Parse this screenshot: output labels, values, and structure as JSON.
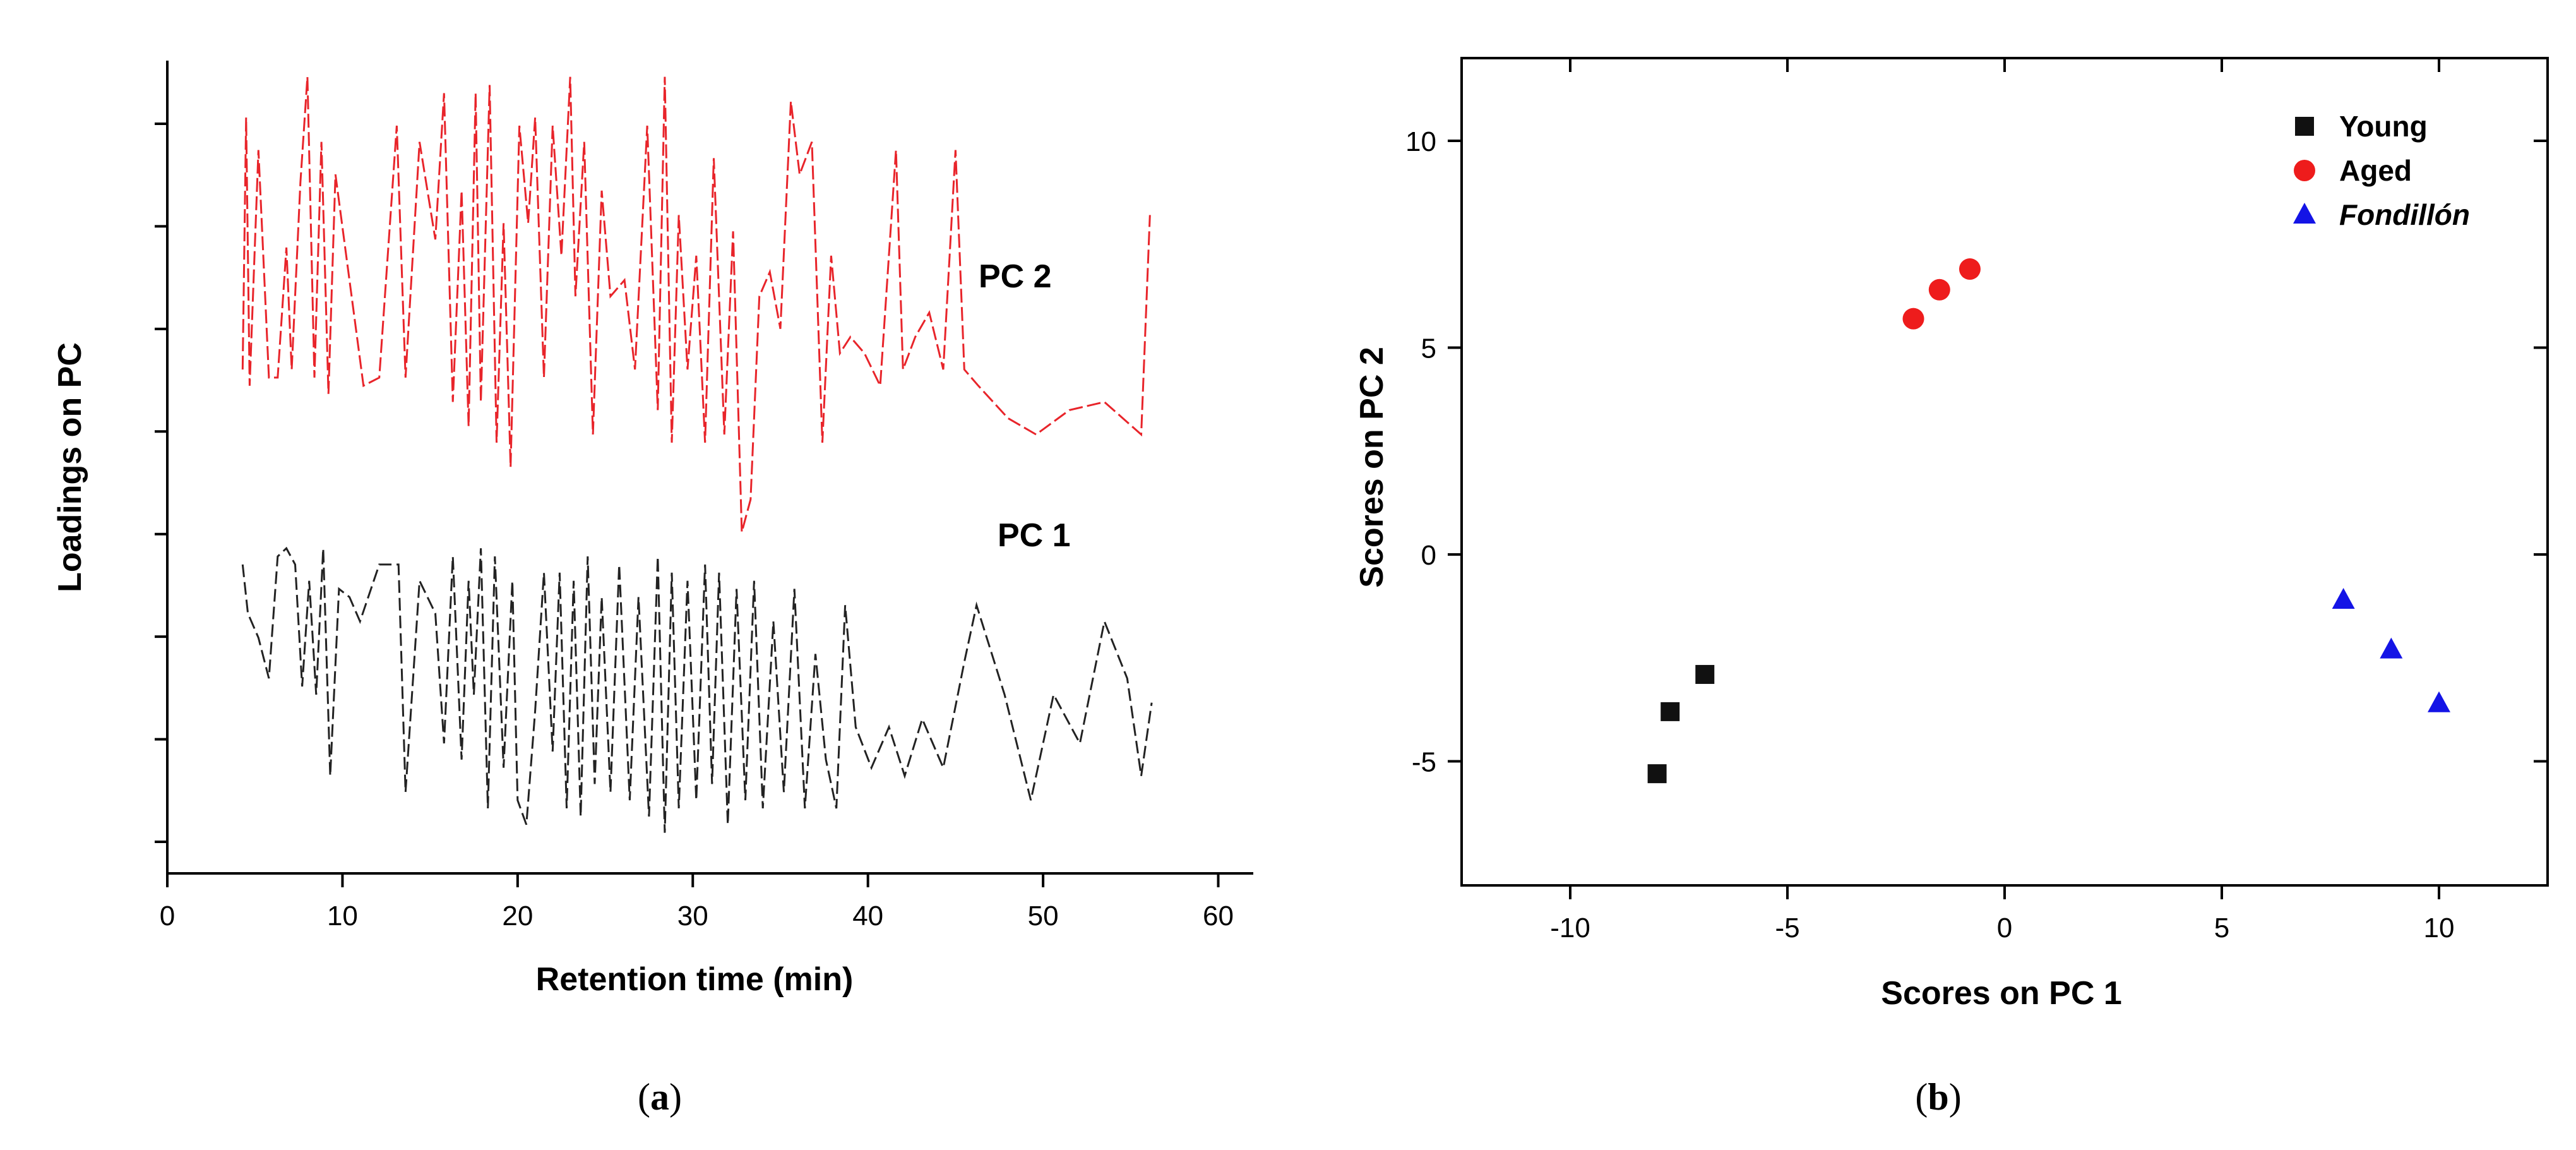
{
  "chart_data": [
    {
      "type": "line",
      "panel_caption": {
        "open": "(",
        "letter": "a",
        "close": ")"
      },
      "xlabel": "Retention time (min)",
      "ylabel": "Loadings on PC",
      "xlim": [
        0,
        62
      ],
      "x_ticks": [
        "0",
        "10",
        "20",
        "30",
        "40",
        "50",
        "60"
      ],
      "y_tick_count": 8,
      "y_tick_labels_shown": false,
      "grid": false,
      "series": [
        {
          "name": "PC 2",
          "color": "#e8242a",
          "line_style": "dashed",
          "x": [
            4.3,
            4.5,
            4.7,
            5.2,
            5.8,
            6.3,
            6.8,
            7.1,
            7.6,
            8.0,
            8.4,
            8.8,
            9.2,
            9.6,
            10.4,
            11.2,
            12.1,
            13.1,
            13.6,
            14.4,
            15.3,
            15.8,
            16.3,
            16.8,
            17.2,
            17.6,
            17.9,
            18.4,
            18.8,
            19.2,
            19.6,
            20.1,
            20.6,
            21.0,
            21.5,
            22.0,
            22.5,
            23.0,
            23.3,
            23.8,
            24.3,
            24.8,
            25.3,
            26.1,
            26.7,
            27.4,
            28.0,
            28.4,
            28.8,
            29.2,
            29.7,
            30.2,
            30.7,
            31.2,
            31.8,
            32.3,
            32.8,
            33.3,
            33.8,
            34.4,
            35.0,
            35.6,
            36.1,
            36.8,
            37.4,
            37.9,
            38.4,
            39.0,
            39.8,
            40.7,
            41.6,
            42.0,
            42.7,
            43.5,
            44.3,
            45.0,
            45.5,
            46.3,
            48.0,
            49.6,
            51.5,
            53.5,
            55.6,
            56.1
          ],
          "values": [
            0.62,
            0.93,
            0.6,
            0.89,
            0.61,
            0.61,
            0.77,
            0.62,
            0.85,
            0.98,
            0.61,
            0.9,
            0.59,
            0.86,
            0.73,
            0.6,
            0.61,
            0.92,
            0.61,
            0.9,
            0.78,
            0.96,
            0.58,
            0.84,
            0.55,
            0.96,
            0.58,
            0.97,
            0.53,
            0.8,
            0.5,
            0.92,
            0.8,
            0.93,
            0.61,
            0.92,
            0.76,
            0.98,
            0.71,
            0.9,
            0.54,
            0.84,
            0.71,
            0.73,
            0.62,
            0.92,
            0.57,
            0.98,
            0.53,
            0.81,
            0.62,
            0.76,
            0.53,
            0.88,
            0.54,
            0.79,
            0.42,
            0.46,
            0.71,
            0.74,
            0.67,
            0.95,
            0.86,
            0.9,
            0.53,
            0.76,
            0.64,
            0.66,
            0.64,
            0.6,
            0.89,
            0.62,
            0.66,
            0.69,
            0.62,
            0.89,
            0.62,
            0.6,
            0.56,
            0.54,
            0.57,
            0.58,
            0.54,
            0.81
          ]
        },
        {
          "name": "PC 1",
          "color": "#222222",
          "line_style": "dashed",
          "x": [
            4.3,
            4.6,
            5.2,
            5.8,
            6.3,
            6.8,
            7.3,
            7.7,
            8.1,
            8.5,
            8.9,
            9.3,
            9.8,
            10.4,
            11.0,
            12.1,
            13.2,
            13.6,
            14.4,
            15.3,
            15.8,
            16.3,
            16.8,
            17.2,
            17.5,
            17.9,
            18.3,
            18.7,
            19.2,
            19.7,
            20.0,
            20.5,
            21.0,
            21.5,
            22.0,
            22.4,
            22.8,
            23.2,
            23.6,
            24.0,
            24.4,
            24.8,
            25.3,
            25.8,
            26.4,
            26.9,
            27.5,
            28.0,
            28.4,
            28.8,
            29.2,
            29.7,
            30.2,
            30.7,
            31.1,
            31.5,
            32.0,
            32.5,
            33.0,
            33.5,
            34.0,
            34.6,
            35.2,
            35.8,
            36.4,
            37.0,
            37.6,
            38.2,
            38.7,
            39.3,
            40.2,
            41.2,
            42.1,
            43.1,
            44.3,
            45.5,
            46.2,
            47.8,
            49.3,
            50.6,
            52.1,
            53.5,
            54.8,
            55.6,
            56.2
          ],
          "values": [
            0.38,
            0.32,
            0.29,
            0.24,
            0.39,
            0.4,
            0.38,
            0.23,
            0.36,
            0.22,
            0.4,
            0.12,
            0.35,
            0.34,
            0.31,
            0.38,
            0.38,
            0.1,
            0.36,
            0.32,
            0.16,
            0.39,
            0.14,
            0.36,
            0.22,
            0.4,
            0.08,
            0.39,
            0.13,
            0.36,
            0.09,
            0.06,
            0.2,
            0.37,
            0.15,
            0.37,
            0.08,
            0.36,
            0.07,
            0.39,
            0.11,
            0.34,
            0.1,
            0.38,
            0.09,
            0.34,
            0.07,
            0.39,
            0.05,
            0.37,
            0.08,
            0.36,
            0.09,
            0.38,
            0.11,
            0.37,
            0.06,
            0.35,
            0.09,
            0.36,
            0.08,
            0.31,
            0.1,
            0.35,
            0.08,
            0.27,
            0.14,
            0.08,
            0.33,
            0.18,
            0.13,
            0.18,
            0.12,
            0.19,
            0.13,
            0.26,
            0.33,
            0.22,
            0.09,
            0.22,
            0.16,
            0.31,
            0.24,
            0.12,
            0.21
          ]
        }
      ]
    },
    {
      "type": "scatter",
      "panel_caption": {
        "open": "(",
        "letter": "b",
        "close": ")"
      },
      "xlabel": "Scores on PC 1",
      "ylabel": "Scores on PC 2",
      "xlim": [
        -12.5,
        12.5
      ],
      "ylim": [
        -8,
        12
      ],
      "x_ticks": [
        -10,
        -5,
        0,
        5,
        10
      ],
      "x_tick_labels": [
        "-10",
        "-5",
        "0",
        "5",
        "10"
      ],
      "y_ticks": [
        -5,
        0,
        5,
        10
      ],
      "y_tick_labels": [
        "-5",
        "0",
        "5",
        "10"
      ],
      "grid": false,
      "legend_position": "top-right",
      "series": [
        {
          "name": "Young",
          "marker": "square",
          "color": "#111111",
          "italic": false,
          "x": [
            -8.0,
            -7.7,
            -6.9
          ],
          "y": [
            -5.3,
            -3.8,
            -2.9
          ]
        },
        {
          "name": "Aged",
          "marker": "circle",
          "color": "#ee1c1c",
          "italic": false,
          "x": [
            -2.1,
            -1.5,
            -0.8
          ],
          "y": [
            5.7,
            6.4,
            6.9
          ]
        },
        {
          "name": "Fondillón",
          "marker": "triangle",
          "color": "#1414e6",
          "italic": true,
          "x": [
            7.8,
            8.9,
            10.0
          ],
          "y": [
            -1.1,
            -2.3,
            -3.6
          ]
        }
      ]
    }
  ]
}
